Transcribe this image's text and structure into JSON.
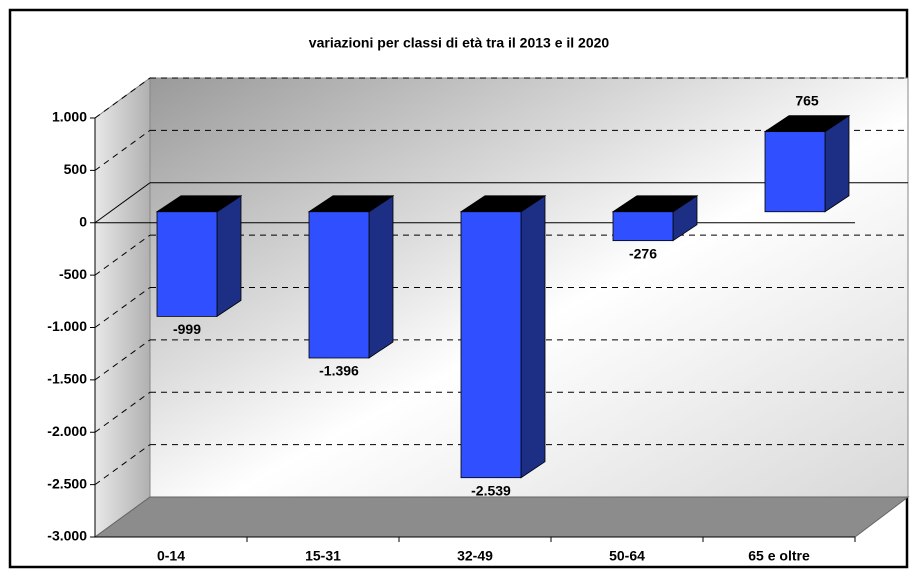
{
  "chart_data": {
    "type": "bar",
    "title": "variazioni per classi di età tra il 2013 e il 2020",
    "categories": [
      "0-14",
      "15-31",
      "32-49",
      "50-64",
      "65 e oltre"
    ],
    "values": [
      -999,
      -1396,
      -2539,
      -276,
      765
    ],
    "value_labels": [
      "-999",
      "-1.396",
      "-2.539",
      "-276",
      "765"
    ],
    "color": "#3050ff",
    "ylim": [
      -3000,
      1000
    ],
    "yticks": [
      {
        "value": -3000,
        "label": "-3.000"
      },
      {
        "value": -2500,
        "label": "-2.500"
      },
      {
        "value": -2000,
        "label": "-2.000"
      },
      {
        "value": -1500,
        "label": "-1.500"
      },
      {
        "value": -1000,
        "label": "-1.000"
      },
      -500,
      0,
      500,
      {
        "value": 1000,
        "label": "1.000"
      }
    ],
    "grid": true
  }
}
